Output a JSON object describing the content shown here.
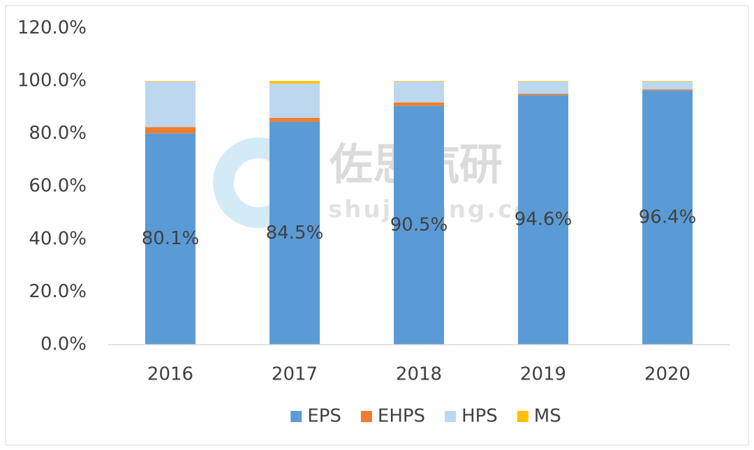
{
  "chart_data": {
    "type": "stacked_bar",
    "categories": [
      "2016",
      "2017",
      "2018",
      "2019",
      "2020"
    ],
    "series": [
      {
        "name": "EPS",
        "color": "#5b9bd5",
        "values": [
          80.1,
          84.5,
          90.5,
          94.6,
          96.4
        ],
        "value_labels": [
          "80.1%",
          "84.5%",
          "90.5%",
          "94.6%",
          "96.4%"
        ]
      },
      {
        "name": "EHPS",
        "color": "#ed7d31",
        "values": [
          2.4,
          1.5,
          1.3,
          0.5,
          0.4
        ]
      },
      {
        "name": "HPS",
        "color": "#bdd7ee",
        "values": [
          17.3,
          13.0,
          8.0,
          4.7,
          3.0
        ]
      },
      {
        "name": "MS",
        "color": "#ffc000",
        "values": [
          0.2,
          1.0,
          0.2,
          0.2,
          0.2
        ]
      }
    ],
    "ylim": [
      0,
      120
    ],
    "yticks": [
      {
        "value": 0,
        "label": "0.0%"
      },
      {
        "value": 20,
        "label": "20.0%"
      },
      {
        "value": 40,
        "label": "40.0%"
      },
      {
        "value": 60,
        "label": "60.0%"
      },
      {
        "value": 80,
        "label": "80.0%"
      },
      {
        "value": 100,
        "label": "100.0%"
      },
      {
        "value": 120,
        "label": "120.0%"
      }
    ],
    "grid": false,
    "legend": "bottom"
  },
  "watermark": {
    "brand": "佐思汽研",
    "site": "shujubang.com"
  }
}
